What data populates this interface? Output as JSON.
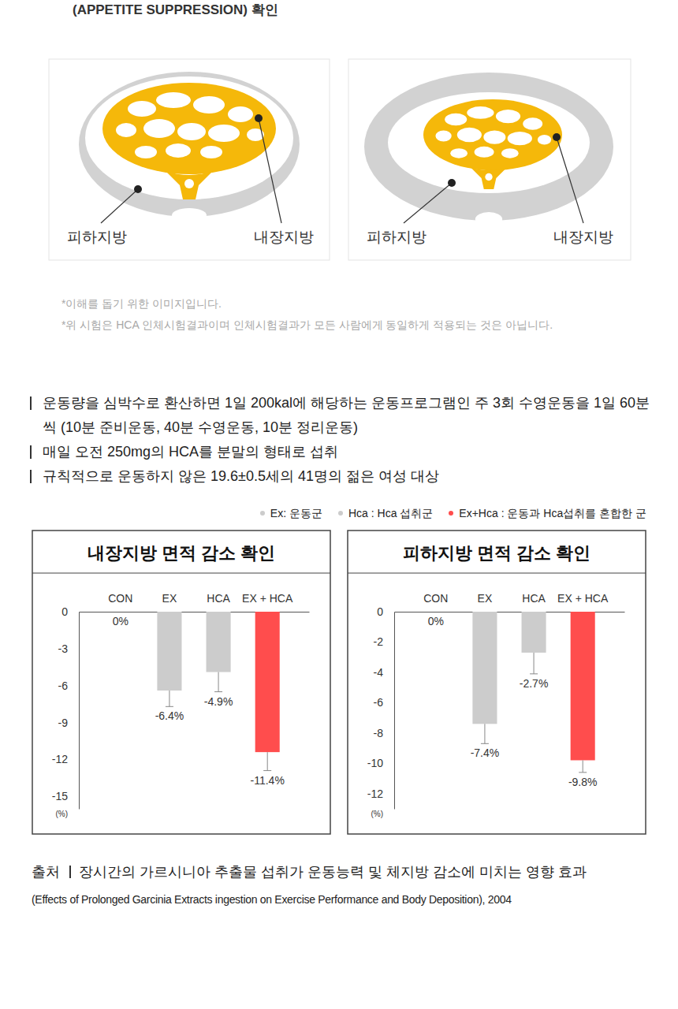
{
  "header": {
    "text": "(APPETITE SUPPRESSION) 확인"
  },
  "diagrams": [
    {
      "labels": [
        "피하지방",
        "내장지방"
      ]
    },
    {
      "labels": [
        "피하지방",
        "내장지방"
      ]
    }
  ],
  "notes": [
    "*이해를 돕기 위한 이미지입니다.",
    "*위 시험은 HCA 인체시험결과이며 인체시험결과가 모든 사람에게 동일하게 적용되는 것은 아닙니다."
  ],
  "bullets": [
    "운동량을 심박수로 환산하면 1일 200kal에 해당하는 운동프로그램인 주 3회 수영운동을 1일 60분씩 (10분 준비운동, 40분 수영운동, 10분 정리운동)",
    "매일 오전 250mg의 HCA를 분말의 형태로 섭취",
    "규칙적으로 운동하지 않은 19.6±0.5세의 41명의 젊은 여성 대상"
  ],
  "legend_items": [
    {
      "label": "Ex: 운동군",
      "color": "#cccccc"
    },
    {
      "label": "Hca : Hca 섭취군",
      "color": "#cccccc"
    },
    {
      "label": "Ex+Hca : 운동과 Hca섭취를 혼합한 군",
      "color": "#ff4d4d"
    }
  ],
  "chart_data": [
    {
      "type": "bar",
      "title": "내장지방 면적 감소 확인",
      "categories": [
        "CON",
        "EX",
        "HCA",
        "EX + HCA"
      ],
      "values": [
        0,
        -6.4,
        -4.9,
        -11.4
      ],
      "value_labels": [
        "0%",
        "-6.4%",
        "-4.9%",
        "-11.4%"
      ],
      "errors": [
        null,
        1.3,
        1.6,
        1.5
      ],
      "colors": [
        "#cccccc",
        "#cccccc",
        "#cccccc",
        "#ff4d4d"
      ],
      "ylim": [
        -16,
        0
      ],
      "yticks": [
        0,
        -3,
        -6,
        -9,
        -12,
        -15
      ],
      "y_label": "(%)",
      "data_labels": true
    },
    {
      "type": "bar",
      "title": "피하지방 면적 감소 확인",
      "categories": [
        "CON",
        "EX",
        "HCA",
        "EX + HCA"
      ],
      "values": [
        0,
        -7.4,
        -2.7,
        -9.8
      ],
      "value_labels": [
        "0%",
        "-7.4%",
        "-2.7%",
        "-9.8%"
      ],
      "errors": [
        null,
        1.3,
        1.4,
        0.8
      ],
      "colors": [
        "#cccccc",
        "#cccccc",
        "#cccccc",
        "#ff4d4d"
      ],
      "ylim": [
        -13,
        0
      ],
      "yticks": [
        0,
        -2,
        -4,
        -6,
        -8,
        -10,
        -12
      ],
      "y_label": "(%)",
      "data_labels": true
    }
  ],
  "source": {
    "label": "출처",
    "title": "장시간의 가르시니아 추출물 섭취가 운동능력 및 체지방 감소에 미치는 영향 효과",
    "subtitle": "(Effects of Prolonged Garcinia Extracts ingestion on Exercise Performance and Body Deposition), 2004"
  }
}
